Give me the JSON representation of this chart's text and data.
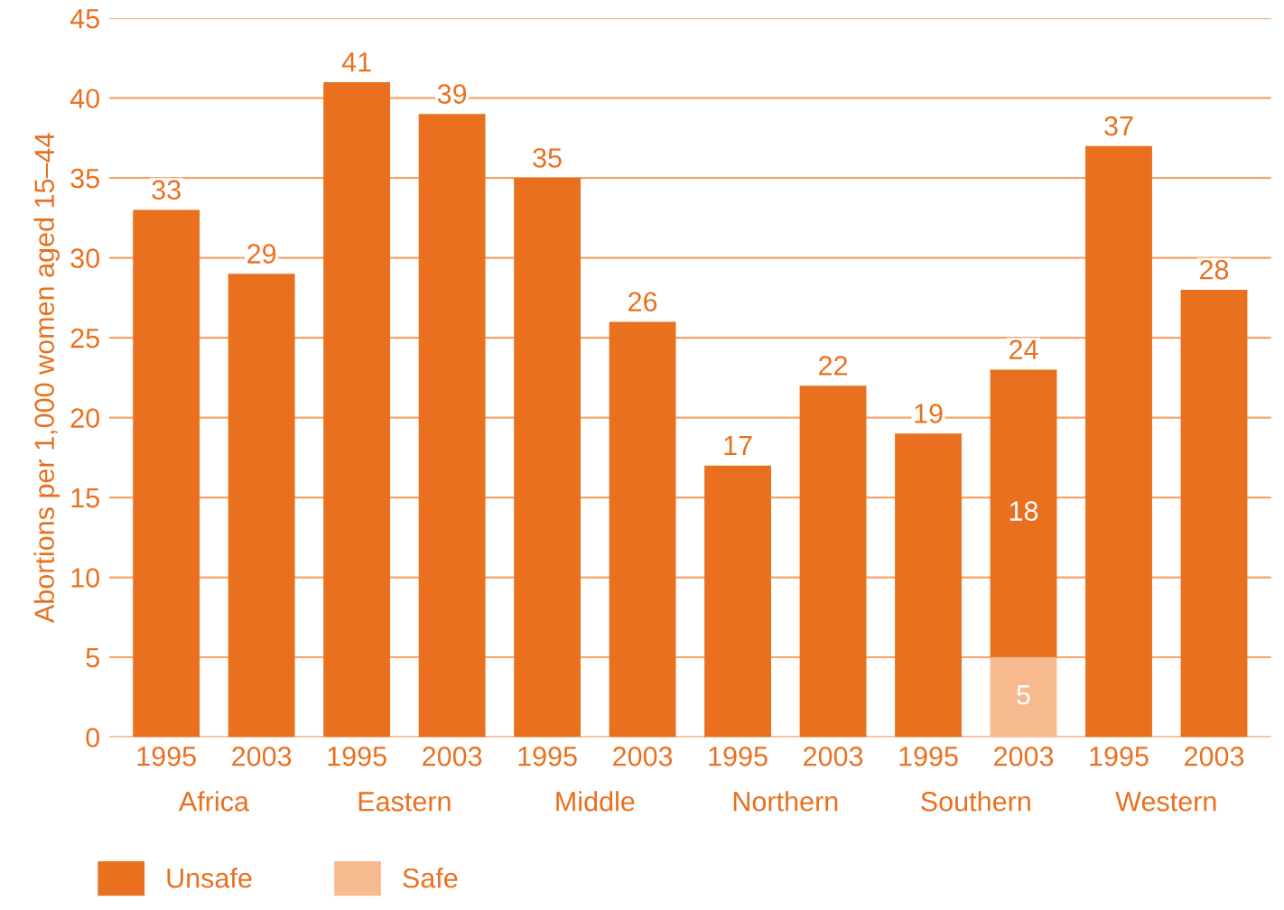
{
  "chart_data": {
    "type": "bar",
    "stacked": true,
    "ylabel": "Abortions per 1,000 women aged 15–44",
    "categories": [
      "1995",
      "2003",
      "1995",
      "2003",
      "1995",
      "2003",
      "1995",
      "2003",
      "1995",
      "2003",
      "1995",
      "2003"
    ],
    "annotations": [
      "Africa",
      "Eastern",
      "Middle",
      "Northern",
      "Southern",
      "Western"
    ],
    "series": [
      {
        "name": "Safe",
        "color": "#f7b98e",
        "values": [
          null,
          null,
          null,
          null,
          null,
          null,
          null,
          null,
          null,
          5,
          null,
          null
        ],
        "value_labels": [
          null,
          null,
          null,
          null,
          null,
          null,
          null,
          null,
          null,
          "5",
          null,
          null
        ]
      },
      {
        "name": "Unsafe",
        "color": "#e8701e",
        "values": [
          33,
          29,
          41,
          39,
          35,
          26,
          17,
          22,
          19,
          18,
          37,
          28
        ],
        "value_labels": [
          null,
          null,
          null,
          null,
          null,
          null,
          null,
          null,
          null,
          "18",
          null,
          null
        ]
      }
    ],
    "totals": [
      "33",
      "29",
      "41",
      "39",
      "35",
      "26",
      "17",
      "22",
      "19",
      "24",
      "37",
      "28"
    ],
    "ylim": [
      0,
      45
    ],
    "yticks": [
      0,
      5,
      10,
      15,
      20,
      25,
      30,
      35,
      40,
      45
    ],
    "grid": "y",
    "legend": "bottom left"
  }
}
